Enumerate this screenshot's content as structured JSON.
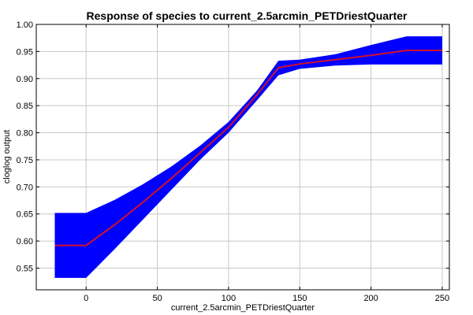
{
  "chart_data": {
    "type": "area",
    "title": "Response of species to current_2.5arcmin_PETDriestQuarter",
    "xlabel": "current_2.5arcmin_PETDriestQuarter",
    "ylabel": "cloglog output",
    "xlim": [
      -35,
      255
    ],
    "ylim": [
      0.51,
      1.0
    ],
    "xticks": [
      0,
      50,
      100,
      150,
      200,
      250
    ],
    "yticks": [
      0.55,
      0.6,
      0.65,
      0.7,
      0.75,
      0.8,
      0.85,
      0.9,
      0.95,
      1.0
    ],
    "grid": true,
    "band_color": "#0000ff",
    "line_color": "#d0102a",
    "band": {
      "x": [
        -22,
        0,
        20,
        40,
        60,
        80,
        100,
        120,
        135,
        150,
        175,
        200,
        225,
        250
      ],
      "lower": [
        0.532,
        0.532,
        0.585,
        0.64,
        0.695,
        0.75,
        0.8,
        0.86,
        0.906,
        0.918,
        0.924,
        0.926,
        0.926,
        0.926
      ],
      "upper": [
        0.652,
        0.652,
        0.676,
        0.705,
        0.738,
        0.776,
        0.82,
        0.878,
        0.933,
        0.935,
        0.945,
        0.962,
        0.978,
        0.978
      ]
    },
    "series": [
      {
        "x": [
          -22,
          0,
          20,
          40,
          60,
          80,
          100,
          120,
          135,
          150,
          175,
          200,
          225,
          250
        ],
        "values": [
          0.592,
          0.592,
          0.63,
          0.672,
          0.716,
          0.763,
          0.81,
          0.87,
          0.92,
          0.927,
          0.935,
          0.943,
          0.952,
          0.952
        ]
      }
    ]
  }
}
